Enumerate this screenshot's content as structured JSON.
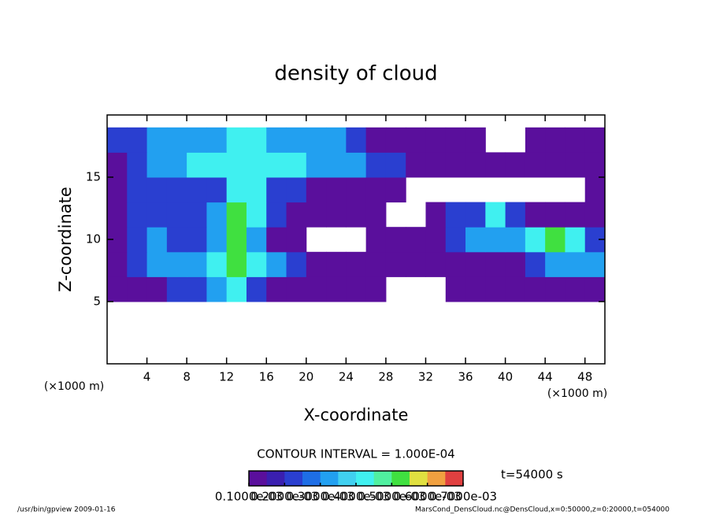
{
  "chart_data": {
    "type": "heatmap",
    "title": "density of cloud",
    "x_label": "X-coordinate",
    "y_label": "Z-coordinate",
    "x_unit": "(×1000 m)",
    "y_unit": "(×1000 m)",
    "xlim": [
      0,
      50
    ],
    "ylim": [
      0,
      20
    ],
    "xticks": [
      4,
      8,
      12,
      16,
      20,
      24,
      28,
      32,
      36,
      40,
      44,
      48
    ],
    "yticks": [
      5,
      10,
      15
    ],
    "x": [
      1,
      3,
      5,
      7,
      9,
      11,
      13,
      15,
      17,
      19,
      21,
      23,
      25,
      27,
      29,
      31,
      33,
      35,
      37,
      39,
      41,
      43,
      45,
      47,
      49
    ],
    "y": [
      6,
      8,
      10,
      12,
      14,
      16,
      18
    ],
    "values": [
      [
        0.0001,
        0.0001,
        0.0001,
        0.0002,
        0.0002,
        0.0003,
        0.0004,
        0.0002,
        0.0001,
        0.0001,
        0.0001,
        0.0001,
        0.0001,
        0.0001,
        null,
        null,
        null,
        0.0001,
        0.0001,
        0.0001,
        0.0001,
        0.0001,
        0.0001,
        0.0001,
        0.0001
      ],
      [
        0.0001,
        0.0002,
        0.0003,
        0.0003,
        0.0003,
        0.0004,
        0.0005,
        0.0004,
        0.0003,
        0.0002,
        0.0001,
        0.0001,
        0.0001,
        0.0001,
        0.0001,
        0.0001,
        0.0001,
        0.0001,
        0.0001,
        0.0001,
        0.0001,
        0.0002,
        0.0003,
        0.0003,
        0.0003
      ],
      [
        0.0001,
        0.0002,
        0.0003,
        0.0002,
        0.0002,
        0.0003,
        0.0005,
        0.0003,
        0.0001,
        0.0001,
        null,
        null,
        null,
        0.0001,
        0.0001,
        0.0001,
        0.0001,
        0.0002,
        0.0003,
        0.0003,
        0.0003,
        0.0004,
        0.0005,
        0.0004,
        0.0002
      ],
      [
        0.0001,
        0.0002,
        0.0002,
        0.0002,
        0.0002,
        0.0003,
        0.0005,
        0.0004,
        0.0002,
        0.0001,
        0.0001,
        0.0001,
        0.0001,
        0.0001,
        null,
        null,
        0.0001,
        0.0002,
        0.0002,
        0.0004,
        0.0002,
        0.0001,
        0.0001,
        0.0001,
        0.0001
      ],
      [
        0.0001,
        0.0002,
        0.0002,
        0.0002,
        0.0002,
        0.0002,
        0.0004,
        0.0004,
        0.0002,
        0.0002,
        0.0001,
        0.0001,
        0.0001,
        0.0001,
        0.0001,
        null,
        null,
        null,
        null,
        null,
        null,
        null,
        null,
        null,
        0.0001
      ],
      [
        0.0001,
        0.0002,
        0.0003,
        0.0003,
        0.0004,
        0.0004,
        0.0004,
        0.0004,
        0.0004,
        0.0004,
        0.0003,
        0.0003,
        0.0003,
        0.0002,
        0.0002,
        0.0001,
        0.0001,
        0.0001,
        0.0001,
        0.0001,
        0.0001,
        0.0001,
        0.0001,
        0.0001,
        0.0001
      ],
      [
        0.0002,
        0.0002,
        0.0003,
        0.0003,
        0.0003,
        0.0003,
        0.0004,
        0.0004,
        0.0003,
        0.0003,
        0.0003,
        0.0003,
        0.0002,
        0.0001,
        0.0001,
        0.0001,
        0.0001,
        0.0001,
        0.0001,
        null,
        null,
        0.0001,
        0.0001,
        0.0001,
        0.0001
      ]
    ],
    "clim": [
      0.0001,
      0.0007
    ],
    "colors": [
      "#5a0f9c",
      "#3a1fb0",
      "#2a3fd0",
      "#1e6ee6",
      "#22a0f0",
      "#40d0f0",
      "#40f0f0",
      "#50f0a0",
      "#40e040",
      "#e0e040",
      "#f0a040",
      "#e04040"
    ],
    "colorbar_ticks": [
      {
        "value": 0.0001,
        "label": "0.1000e-03"
      },
      {
        "value": 0.0002,
        "label": "0.2000e-03"
      },
      {
        "value": 0.0003,
        "label": "0.3000e-03"
      },
      {
        "value": 0.0004,
        "label": "0.4000e-03"
      },
      {
        "value": 0.0005,
        "label": "0.5000e-03"
      },
      {
        "value": 0.0006,
        "label": "0.6000e-03"
      },
      {
        "value": 0.0007,
        "label": "0.7000e-03"
      }
    ],
    "contour_note": "CONTOUR INTERVAL = 1.000E-04",
    "time_note": "t=54000 s",
    "footer_left": "/usr/bin/gpview  2009-01-16",
    "footer_right": "MarsCond_DensCloud.nc@DensCloud,x=0:50000,z=0:20000,t=054000"
  }
}
